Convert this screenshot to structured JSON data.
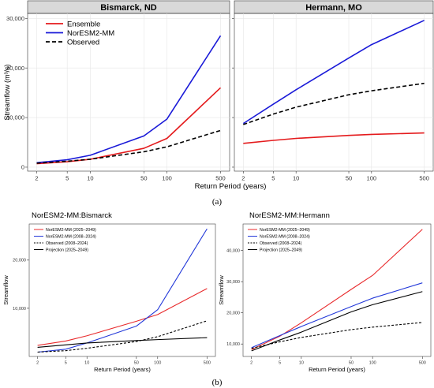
{
  "figure": {
    "label_a": "(a)",
    "label_b": "(b)"
  },
  "chart_data": [
    {
      "type": "line",
      "title": "Bismarck, ND",
      "xscale": "log",
      "xlabel": "Return Period (years)",
      "ylabel": "Streamflow (m³/s)",
      "xticks": [
        2,
        5,
        10,
        50,
        100,
        500
      ],
      "yticks": [
        0,
        10000,
        20000,
        30000
      ],
      "ytick_labels": [
        "0",
        "10,000",
        "20,000",
        "30,000"
      ],
      "ylim": [
        -800,
        31000
      ],
      "legend": "top-left",
      "series": [
        {
          "name": "Ensemble",
          "color": "#e41a1c",
          "dash": "solid",
          "x": [
            2,
            5,
            10,
            50,
            100,
            500
          ],
          "y": [
            700,
            1100,
            1600,
            3800,
            5800,
            16000
          ]
        },
        {
          "name": "NorESM2-MM",
          "color": "#1a1ad8",
          "dash": "solid",
          "x": [
            2,
            5,
            10,
            50,
            100,
            500
          ],
          "y": [
            900,
            1500,
            2400,
            6300,
            9700,
            26500
          ]
        },
        {
          "name": "Observed",
          "color": "#000000",
          "dash": "dashed",
          "x": [
            2,
            5,
            10,
            50,
            100,
            500
          ],
          "y": [
            800,
            1200,
            1600,
            3100,
            4100,
            7400
          ]
        }
      ]
    },
    {
      "type": "line",
      "title": "Hermann, MO",
      "xscale": "log",
      "xlabel": "Return Period (years)",
      "ylabel": "",
      "xticks": [
        2,
        5,
        10,
        50,
        100,
        500
      ],
      "yticks": [
        0,
        10000,
        20000,
        30000
      ],
      "ylim": [
        -800,
        31000
      ],
      "series": [
        {
          "name": "Ensemble",
          "color": "#e41a1c",
          "dash": "solid",
          "x": [
            2,
            5,
            10,
            50,
            100,
            500
          ],
          "y": [
            4800,
            5400,
            5800,
            6400,
            6600,
            6900
          ]
        },
        {
          "name": "NorESM2-MM",
          "color": "#1a1ad8",
          "dash": "solid",
          "x": [
            2,
            5,
            10,
            50,
            100,
            500
          ],
          "y": [
            8800,
            12700,
            15600,
            22000,
            24700,
            29600
          ]
        },
        {
          "name": "Observed",
          "color": "#000000",
          "dash": "dashed",
          "x": [
            2,
            5,
            10,
            50,
            100,
            500
          ],
          "y": [
            8600,
            10700,
            12100,
            14600,
            15400,
            16900
          ]
        }
      ]
    },
    {
      "type": "line",
      "title": "NorESM2-MM:Bismarck",
      "xscale": "log",
      "xlabel": "Return Period (years)",
      "ylabel": "Streamflow",
      "xticks": [
        2,
        5,
        10,
        50,
        100,
        500
      ],
      "yticks": [
        10000,
        20000
      ],
      "ytick_labels": [
        "10,000",
        "20,000"
      ],
      "ylim": [
        0,
        27500
      ],
      "legend": "top-left",
      "series": [
        {
          "name": "NorESM2-MM (2025–2049)",
          "color": "#e8292b",
          "dash": "solid",
          "x": [
            2,
            5,
            10,
            50,
            100,
            500
          ],
          "y": [
            2300,
            3200,
            4300,
            7300,
            8700,
            14100
          ]
        },
        {
          "name": "NorESM2-MM (2008–2024)",
          "color": "#2238d9",
          "dash": "solid",
          "x": [
            2,
            5,
            10,
            50,
            100,
            500
          ],
          "y": [
            900,
            1500,
            2800,
            6300,
            9700,
            26500
          ]
        },
        {
          "name": "Observed (2008–2024)",
          "color": "#000000",
          "dash": "dashed",
          "x": [
            2,
            5,
            10,
            50,
            100,
            500
          ],
          "y": [
            900,
            1200,
            1700,
            3100,
            4100,
            7400
          ]
        },
        {
          "name": "Projection (2025–2049)",
          "color": "#000000",
          "dash": "solid",
          "x": [
            2,
            5,
            10,
            50,
            100,
            500
          ],
          "y": [
            1900,
            2400,
            2800,
            3300,
            3500,
            3900
          ]
        }
      ]
    },
    {
      "type": "line",
      "title": "NorESM2-MM:Hermann",
      "xscale": "log",
      "xlabel": "Return Period (years)",
      "ylabel": "Streamflow",
      "xticks": [
        2,
        5,
        10,
        50,
        100,
        500
      ],
      "yticks": [
        10000,
        20000,
        30000,
        40000
      ],
      "ytick_labels": [
        "10,000",
        "20,000",
        "30,000",
        "40,000"
      ],
      "ylim": [
        6000,
        48500
      ],
      "legend": "top-left",
      "series": [
        {
          "name": "NorESM2-MM (2025–2049)",
          "color": "#e8292b",
          "dash": "solid",
          "x": [
            2,
            5,
            10,
            50,
            100,
            500
          ],
          "y": [
            8200,
            12500,
            16800,
            27500,
            32000,
            46800
          ]
        },
        {
          "name": "NorESM2-MM (2008–2024)",
          "color": "#2238d9",
          "dash": "solid",
          "x": [
            2,
            5,
            10,
            50,
            100,
            500
          ],
          "y": [
            8800,
            12700,
            15600,
            22000,
            24700,
            29600
          ]
        },
        {
          "name": "Observed (2008–2024)",
          "color": "#000000",
          "dash": "dashed",
          "x": [
            2,
            5,
            10,
            50,
            100,
            500
          ],
          "y": [
            8600,
            10700,
            12100,
            14600,
            15400,
            16900
          ]
        },
        {
          "name": "Projection (2025–2049)",
          "color": "#000000",
          "dash": "solid",
          "x": [
            2,
            5,
            10,
            50,
            100,
            500
          ],
          "y": [
            7800,
            11300,
            13800,
            20300,
            22600,
            26800
          ]
        }
      ]
    }
  ]
}
